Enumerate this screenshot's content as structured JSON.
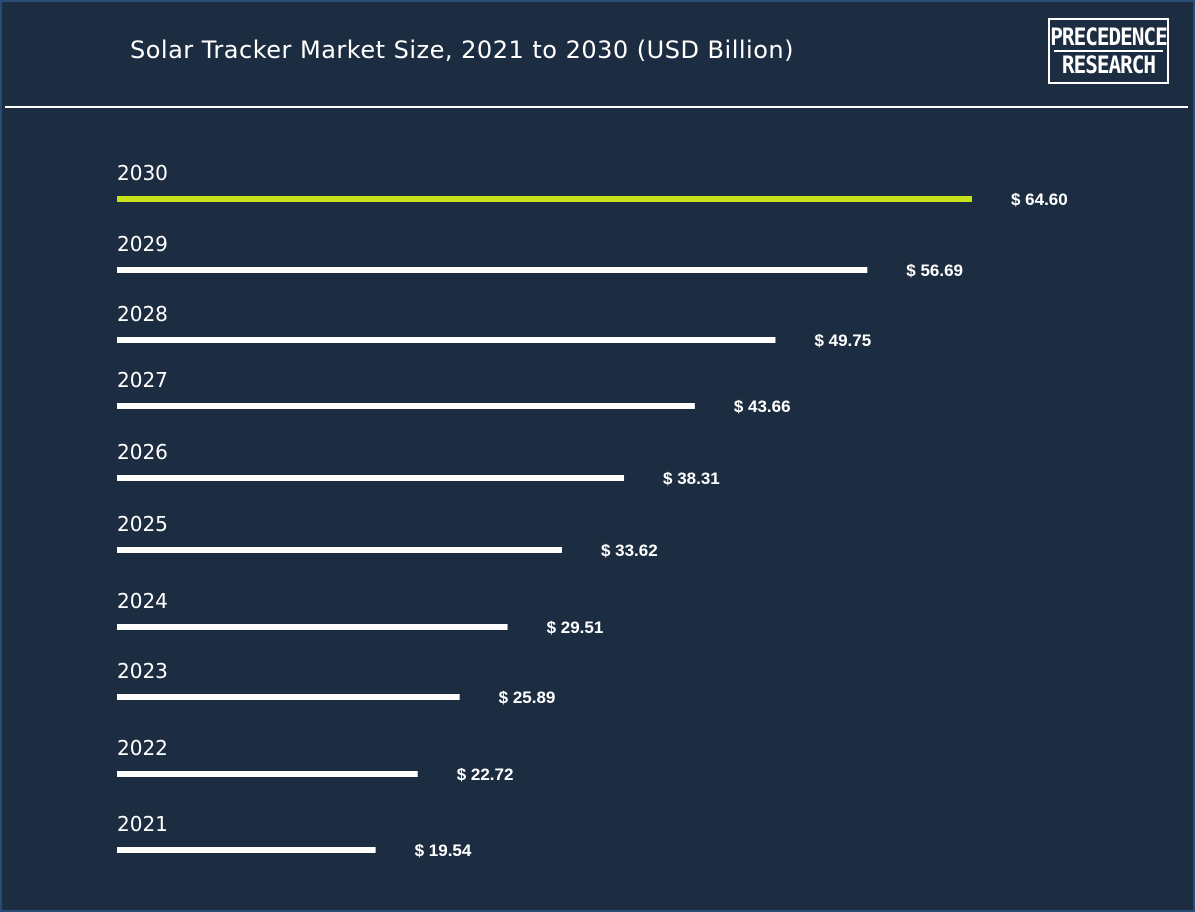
{
  "header": {
    "title": "Solar Tracker Market Size, 2021 to 2030 (USD Billion)",
    "logo_line1": "PRECEDENCE",
    "logo_line2": "RESEARCH"
  },
  "colors": {
    "background": "#1d2d41",
    "bar_default": "#ffffff",
    "bar_highlight": "#c8e219",
    "text": "#ffffff"
  },
  "chart_data": {
    "type": "bar",
    "orientation": "horizontal",
    "title": "Solar Tracker Market Size, 2021 to 2030 (USD Billion)",
    "categories": [
      "2030",
      "2029",
      "2028",
      "2027",
      "2026",
      "2025",
      "2024",
      "2023",
      "2022",
      "2021"
    ],
    "values": [
      64.6,
      56.69,
      49.75,
      43.66,
      38.31,
      33.62,
      29.51,
      25.89,
      22.72,
      19.54
    ],
    "value_labels": [
      "$ 64.60",
      "$ 56.69",
      "$ 49.75",
      "$ 43.66",
      "$ 38.31",
      "$ 33.62",
      "$ 29.51",
      "$ 25.89",
      "$ 22.72",
      "$ 19.54"
    ],
    "highlight_category": "2030",
    "xlabel": "",
    "ylabel": "",
    "grid": false
  }
}
